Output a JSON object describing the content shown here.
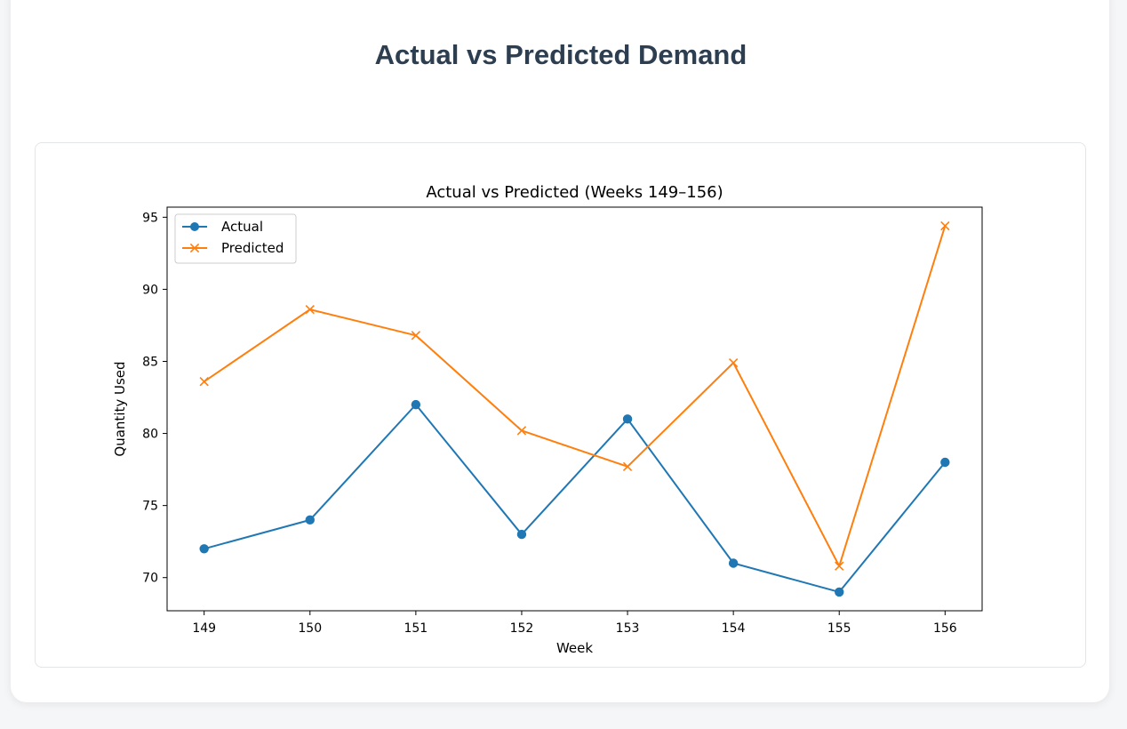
{
  "page": {
    "title": "Actual vs Predicted Demand"
  },
  "colors": {
    "actual": "#1f77b4",
    "predicted": "#ff7f0e",
    "heading": "#2c3e50"
  },
  "chart_data": {
    "type": "line",
    "title": "Actual vs Predicted (Weeks 149–156)",
    "xlabel": "Week",
    "ylabel": "Quantity Used",
    "x": [
      149,
      150,
      151,
      152,
      153,
      154,
      155,
      156
    ],
    "x_tick_labels": [
      "149",
      "150",
      "151",
      "152",
      "153",
      "154",
      "155",
      "156"
    ],
    "y_ticks": [
      70,
      75,
      80,
      85,
      90,
      95
    ],
    "y_tick_labels": [
      "70",
      "75",
      "80",
      "85",
      "90",
      "95"
    ],
    "xlim": [
      148.65,
      156.35
    ],
    "ylim": [
      67.7,
      95.7
    ],
    "grid": false,
    "legend_position": "upper-left",
    "series": [
      {
        "name": "Actual",
        "marker": "circle",
        "color": "#1f77b4",
        "values": [
          72,
          74,
          82,
          73,
          81,
          71,
          69,
          78
        ]
      },
      {
        "name": "Predicted",
        "marker": "x",
        "color": "#ff7f0e",
        "values": [
          83.6,
          88.6,
          86.8,
          80.2,
          77.7,
          84.9,
          70.8,
          94.4
        ]
      }
    ]
  }
}
